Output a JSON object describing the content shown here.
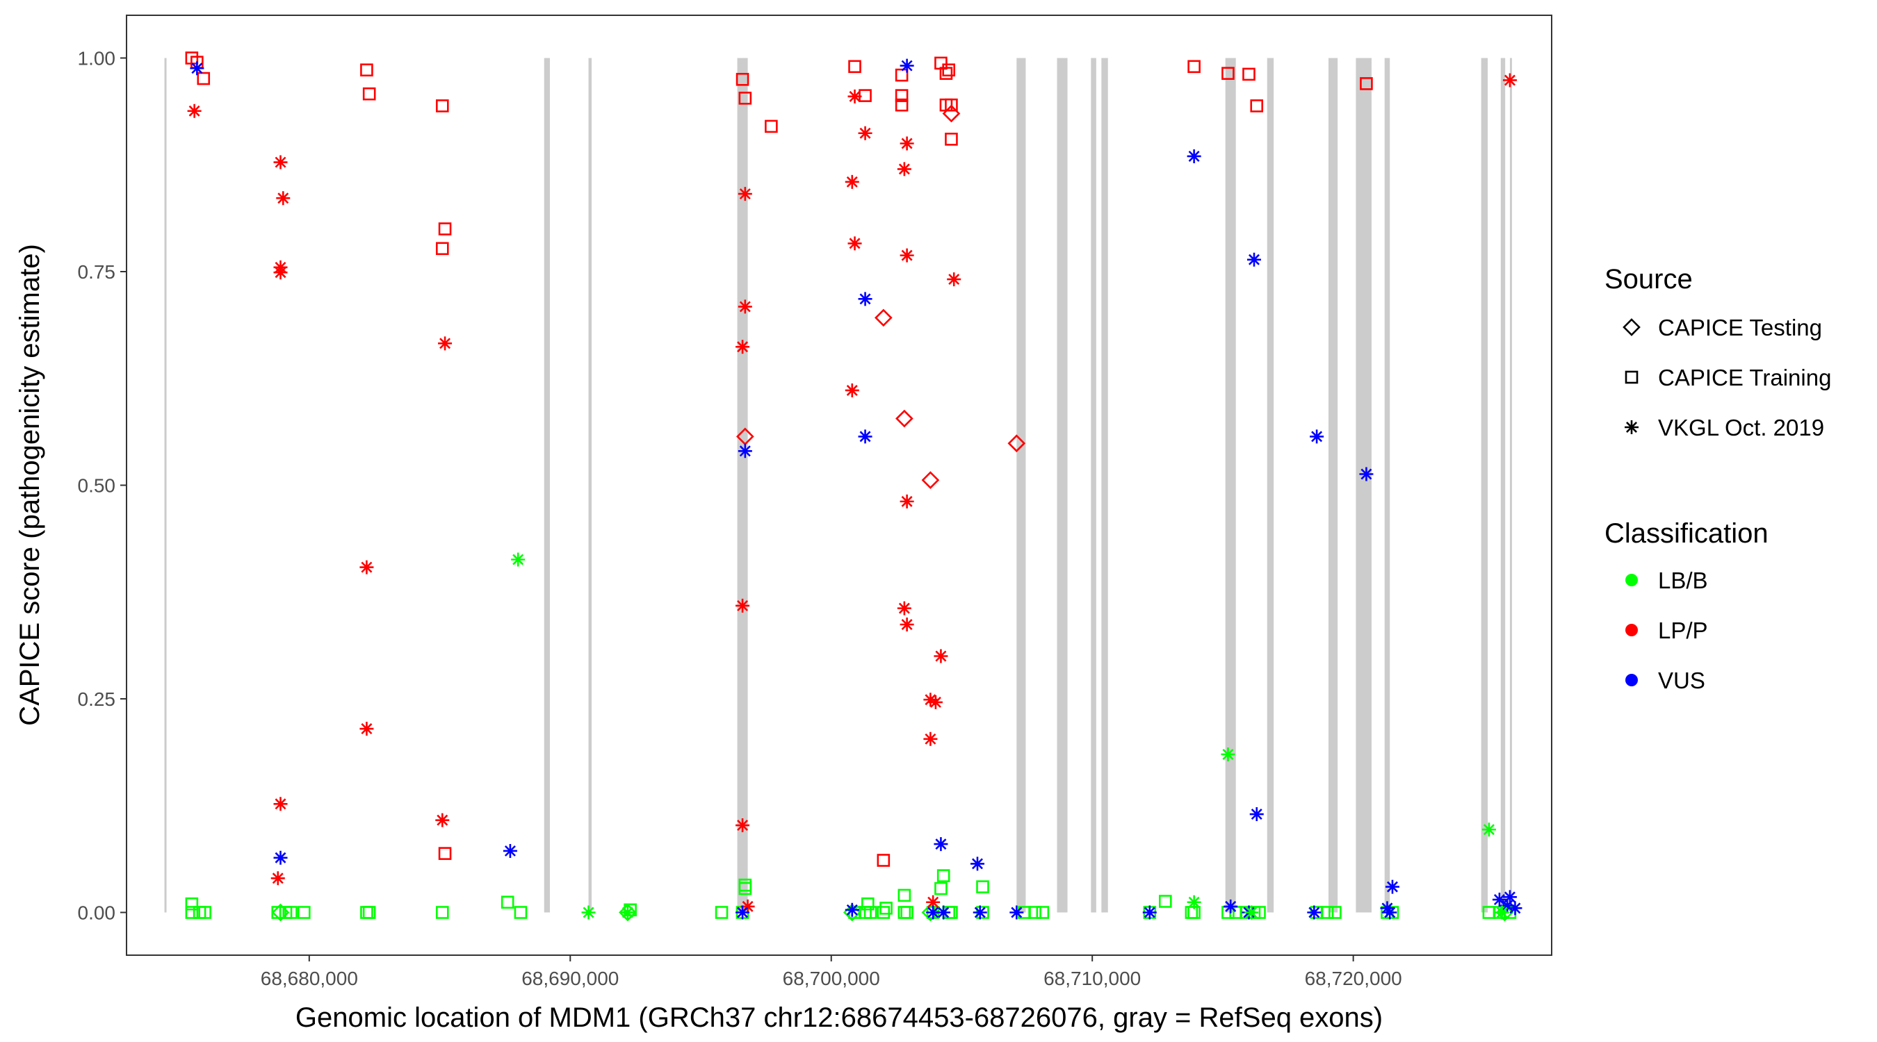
{
  "chart_data": {
    "type": "scatter",
    "xlabel": "Genomic location of MDM1 (GRCh37 chr12:68674453-68726076, gray = RefSeq exons)",
    "ylabel": "CAPICE score (pathogenicity estimate)",
    "xlim": [
      68673000,
      68727600
    ],
    "ylim": [
      -0.05,
      1.05
    ],
    "x_ticks": [
      68680000,
      68690000,
      68700000,
      68710000,
      68720000
    ],
    "x_tick_labels": [
      "68,680,000",
      "68,690,000",
      "68,700,000",
      "68,710,000",
      "68,720,000"
    ],
    "y_ticks": [
      0,
      0.25,
      0.5,
      0.75,
      1.0
    ],
    "y_tick_labels": [
      "0.00",
      "0.25",
      "0.50",
      "0.75",
      "1.00"
    ],
    "grid": false,
    "legend_position": "right",
    "legend": {
      "source_title": "Source",
      "source_items": [
        {
          "label": "CAPICE Testing",
          "shape": "diamond"
        },
        {
          "label": "CAPICE Training",
          "shape": "square"
        },
        {
          "label": "VKGL Oct. 2019",
          "shape": "asterisk"
        }
      ],
      "class_title": "Classification",
      "class_items": [
        {
          "label": "LB/B",
          "color": "#00ff00"
        },
        {
          "label": "LP/P",
          "color": "#ff0000"
        },
        {
          "label": "VUS",
          "color": "#0000ff"
        }
      ]
    },
    "colors": {
      "LB/B": "#00ff00",
      "LP/P": "#ff0000",
      "VUS": "#0000ff",
      "exon": "#cccccc"
    },
    "exons": [
      [
        68674453,
        68674530
      ],
      [
        68689000,
        68689220
      ],
      [
        68690700,
        68690820
      ],
      [
        68696400,
        68696800
      ],
      [
        68707100,
        68707450
      ],
      [
        68708650,
        68709050
      ],
      [
        68709950,
        68710150
      ],
      [
        68710350,
        68710600
      ],
      [
        68715100,
        68715500
      ],
      [
        68716700,
        68716950
      ],
      [
        68719050,
        68719400
      ],
      [
        68720100,
        68720700
      ],
      [
        68721200,
        68721400
      ],
      [
        68724900,
        68725150
      ],
      [
        68725650,
        68725820
      ],
      [
        68726000,
        68726076
      ]
    ],
    "series": [
      {
        "source": "CAPICE Training",
        "classification": "LP/P",
        "points": [
          [
            68675500,
            1.0
          ],
          [
            68675700,
            0.995
          ],
          [
            68675950,
            0.976
          ],
          [
            68682200,
            0.986
          ],
          [
            68682300,
            0.958
          ],
          [
            68685100,
            0.944
          ],
          [
            68685200,
            0.8
          ],
          [
            68685100,
            0.777
          ],
          [
            68685200,
            0.069
          ],
          [
            68696600,
            0.975
          ],
          [
            68696700,
            0.953
          ],
          [
            68697700,
            0.92
          ],
          [
            68700900,
            0.99
          ],
          [
            68701300,
            0.956
          ],
          [
            68702700,
            0.98
          ],
          [
            68702700,
            0.956
          ],
          [
            68702700,
            0.945
          ],
          [
            68704200,
            0.994
          ],
          [
            68704400,
            0.982
          ],
          [
            68704500,
            0.986
          ],
          [
            68704400,
            0.945
          ],
          [
            68704600,
            0.945
          ],
          [
            68704600,
            0.905
          ],
          [
            68702000,
            0.061
          ],
          [
            68713900,
            0.99
          ],
          [
            68715200,
            0.982
          ],
          [
            68716000,
            0.981
          ],
          [
            68716300,
            0.944
          ],
          [
            68720500,
            0.97
          ]
        ]
      },
      {
        "source": "CAPICE Training",
        "classification": "LB/B",
        "points": [
          [
            68675500,
            0.0
          ],
          [
            68675500,
            0.01
          ],
          [
            68675800,
            0.0
          ],
          [
            68676000,
            0.0
          ],
          [
            68678800,
            0.0
          ],
          [
            68679100,
            0.0
          ],
          [
            68679300,
            0.0
          ],
          [
            68679800,
            0.0
          ],
          [
            68682200,
            0.0
          ],
          [
            68682300,
            0.0
          ],
          [
            68685100,
            0.0
          ],
          [
            68687600,
            0.012
          ],
          [
            68688100,
            0.0
          ],
          [
            68692300,
            0.003
          ],
          [
            68695800,
            0.0
          ],
          [
            68696600,
            0.0
          ],
          [
            68696700,
            0.028
          ],
          [
            68696700,
            0.032
          ],
          [
            68700900,
            0.0
          ],
          [
            68701300,
            0.0
          ],
          [
            68701400,
            0.01
          ],
          [
            68701500,
            0.0
          ],
          [
            68702000,
            0.0
          ],
          [
            68702100,
            0.005
          ],
          [
            68702800,
            0.0
          ],
          [
            68702800,
            0.02
          ],
          [
            68702900,
            0.0
          ],
          [
            68703900,
            0.0
          ],
          [
            68704200,
            0.028
          ],
          [
            68704300,
            0.043
          ],
          [
            68704500,
            0.0
          ],
          [
            68704600,
            0.0
          ],
          [
            68705800,
            0.0
          ],
          [
            68705800,
            0.03
          ],
          [
            68707400,
            0.0
          ],
          [
            68707800,
            0.0
          ],
          [
            68708100,
            0.0
          ],
          [
            68712200,
            0.0
          ],
          [
            68712800,
            0.013
          ],
          [
            68713800,
            0.0
          ],
          [
            68713900,
            0.0
          ],
          [
            68715200,
            0.0
          ],
          [
            68715500,
            0.0
          ],
          [
            68715900,
            0.0
          ],
          [
            68716200,
            0.0
          ],
          [
            68716400,
            0.0
          ],
          [
            68718600,
            0.0
          ],
          [
            68719000,
            0.0
          ],
          [
            68719300,
            0.0
          ],
          [
            68721300,
            0.0
          ],
          [
            68721500,
            0.0
          ],
          [
            68725200,
            0.0
          ],
          [
            68725600,
            0.0
          ],
          [
            68726000,
            0.0
          ]
        ]
      },
      {
        "source": "CAPICE Testing",
        "classification": "LP/P",
        "points": [
          [
            68696700,
            0.557
          ],
          [
            68702000,
            0.696
          ],
          [
            68702800,
            0.578
          ],
          [
            68703800,
            0.506
          ],
          [
            68704600,
            0.935
          ],
          [
            68707100,
            0.549
          ]
        ]
      },
      {
        "source": "CAPICE Testing",
        "classification": "LB/B",
        "points": [
          [
            68678900,
            0.0
          ],
          [
            68692200,
            0.0
          ],
          [
            68700800,
            0.0
          ],
          [
            68703800,
            0.0
          ],
          [
            68725800,
            0.0
          ]
        ]
      },
      {
        "source": "VKGL Oct. 2019",
        "classification": "LP/P",
        "points": [
          [
            68675600,
            0.938
          ],
          [
            68678900,
            0.878
          ],
          [
            68679000,
            0.836
          ],
          [
            68678900,
            0.755
          ],
          [
            68678900,
            0.749
          ],
          [
            68678900,
            0.127
          ],
          [
            68678800,
            0.04
          ],
          [
            68682200,
            0.404
          ],
          [
            68682200,
            0.215
          ],
          [
            68685200,
            0.666
          ],
          [
            68685100,
            0.108
          ],
          [
            68696700,
            0.841
          ],
          [
            68696700,
            0.709
          ],
          [
            68696600,
            0.662
          ],
          [
            68696600,
            0.359
          ],
          [
            68696600,
            0.102
          ],
          [
            68696800,
            0.007
          ],
          [
            68700900,
            0.955
          ],
          [
            68700800,
            0.855
          ],
          [
            68700900,
            0.783
          ],
          [
            68700800,
            0.611
          ],
          [
            68701300,
            0.912
          ],
          [
            68702900,
            0.9
          ],
          [
            68702800,
            0.87
          ],
          [
            68702900,
            0.769
          ],
          [
            68702900,
            0.481
          ],
          [
            68702800,
            0.356
          ],
          [
            68702900,
            0.337
          ],
          [
            68704200,
            0.3
          ],
          [
            68703800,
            0.249
          ],
          [
            68704000,
            0.246
          ],
          [
            68703800,
            0.203
          ],
          [
            68703900,
            0.012
          ],
          [
            68704700,
            0.741
          ],
          [
            68726000,
            0.974
          ]
        ]
      },
      {
        "source": "VKGL Oct. 2019",
        "classification": "VUS",
        "points": [
          [
            68675700,
            0.988
          ],
          [
            68678900,
            0.064
          ],
          [
            68687700,
            0.072
          ],
          [
            68696700,
            0.54
          ],
          [
            68696600,
            0.0
          ],
          [
            68701300,
            0.718
          ],
          [
            68701300,
            0.557
          ],
          [
            68700800,
            0.003
          ],
          [
            68702900,
            0.991
          ],
          [
            68704200,
            0.08
          ],
          [
            68703900,
            0.0
          ],
          [
            68704300,
            0.0
          ],
          [
            68705600,
            0.057
          ],
          [
            68705700,
            0.0
          ],
          [
            68707100,
            0.0
          ],
          [
            68712200,
            0.0
          ],
          [
            68713900,
            0.885
          ],
          [
            68715300,
            0.007
          ],
          [
            68716200,
            0.764
          ],
          [
            68716300,
            0.115
          ],
          [
            68716000,
            0.0
          ],
          [
            68718600,
            0.557
          ],
          [
            68718500,
            0.0
          ],
          [
            68720500,
            0.513
          ],
          [
            68721500,
            0.03
          ],
          [
            68721300,
            0.005
          ],
          [
            68721400,
            0.0
          ],
          [
            68725600,
            0.015
          ],
          [
            68726000,
            0.018
          ],
          [
            68725900,
            0.008
          ],
          [
            68726200,
            0.005
          ]
        ]
      },
      {
        "source": "VKGL Oct. 2019",
        "classification": "LB/B",
        "points": [
          [
            68688000,
            0.413
          ],
          [
            68690700,
            0.0
          ],
          [
            68692200,
            0.0
          ],
          [
            68713900,
            0.012
          ],
          [
            68715200,
            0.185
          ],
          [
            68725200,
            0.097
          ],
          [
            68725700,
            0.0
          ],
          [
            68716100,
            0.0
          ]
        ]
      }
    ]
  }
}
